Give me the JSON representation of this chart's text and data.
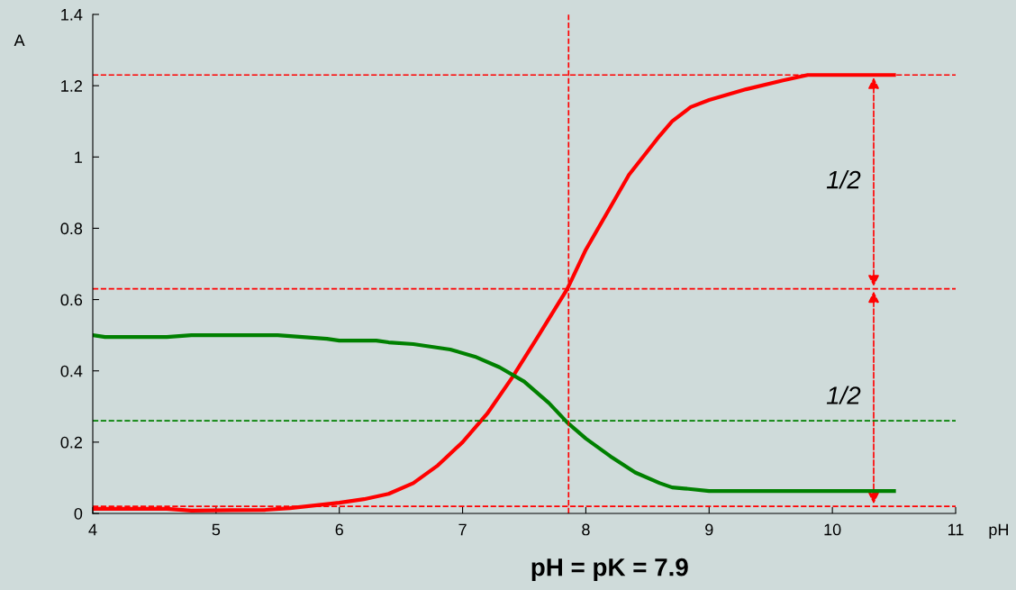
{
  "chart_data": {
    "type": "line",
    "xlabel": "pH",
    "ylabel": "A",
    "xlim": [
      4,
      11
    ],
    "ylim": [
      0,
      1.4
    ],
    "xticks": [
      4,
      5,
      6,
      7,
      8,
      9,
      10,
      11
    ],
    "yticks": [
      0,
      0.2,
      0.4,
      0.6,
      0.8,
      1,
      1.2,
      1.4
    ],
    "grid": false,
    "marker": "none",
    "line_style": "solid",
    "series": [
      {
        "color": "#ff0000",
        "x": [
          4,
          4.6,
          4.8,
          5.4,
          5.6,
          6,
          6.2,
          6.4,
          6.6,
          6.8,
          7,
          7.2,
          7.4,
          7.6,
          7.85,
          8,
          8.2,
          8.35,
          8.6,
          8.7,
          8.85,
          9,
          9.3,
          9.6,
          9.8,
          10.5
        ],
        "values": [
          0.013,
          0.013,
          0.008,
          0.01,
          0.015,
          0.03,
          0.04,
          0.055,
          0.085,
          0.135,
          0.2,
          0.28,
          0.38,
          0.49,
          0.63,
          0.74,
          0.86,
          0.95,
          1.06,
          1.1,
          1.14,
          1.16,
          1.19,
          1.215,
          1.23,
          1.23
        ]
      },
      {
        "color": "#008000",
        "x": [
          4,
          4.1,
          4.6,
          4.8,
          5.5,
          5.9,
          6,
          6.3,
          6.4,
          6.6,
          6.9,
          7.1,
          7.3,
          7.5,
          7.7,
          7.85,
          8,
          8.2,
          8.4,
          8.6,
          8.7,
          8.8,
          9,
          10.5
        ],
        "values": [
          0.5,
          0.495,
          0.495,
          0.5,
          0.5,
          0.49,
          0.485,
          0.485,
          0.48,
          0.475,
          0.46,
          0.44,
          0.41,
          0.37,
          0.31,
          0.255,
          0.21,
          0.16,
          0.115,
          0.085,
          0.073,
          0.07,
          0.063,
          0.063
        ]
      }
    ],
    "ref_lines": [
      {
        "axis": "y",
        "value": 1.23,
        "color": "#ff0000",
        "line_style": "dashed"
      },
      {
        "axis": "y",
        "value": 0.63,
        "color": "#ff0000",
        "line_style": "dashed"
      },
      {
        "axis": "y",
        "value": 0.02,
        "color": "#ff0000",
        "line_style": "dashed"
      },
      {
        "axis": "y",
        "value": 0.26,
        "color": "#008000",
        "line_style": "dashed"
      },
      {
        "axis": "x",
        "value": 7.86,
        "color": "#ff0000",
        "line_style": "dashed"
      }
    ],
    "annotations": [
      "1/2",
      "1/2",
      "pH = pK = 7.9"
    ]
  }
}
